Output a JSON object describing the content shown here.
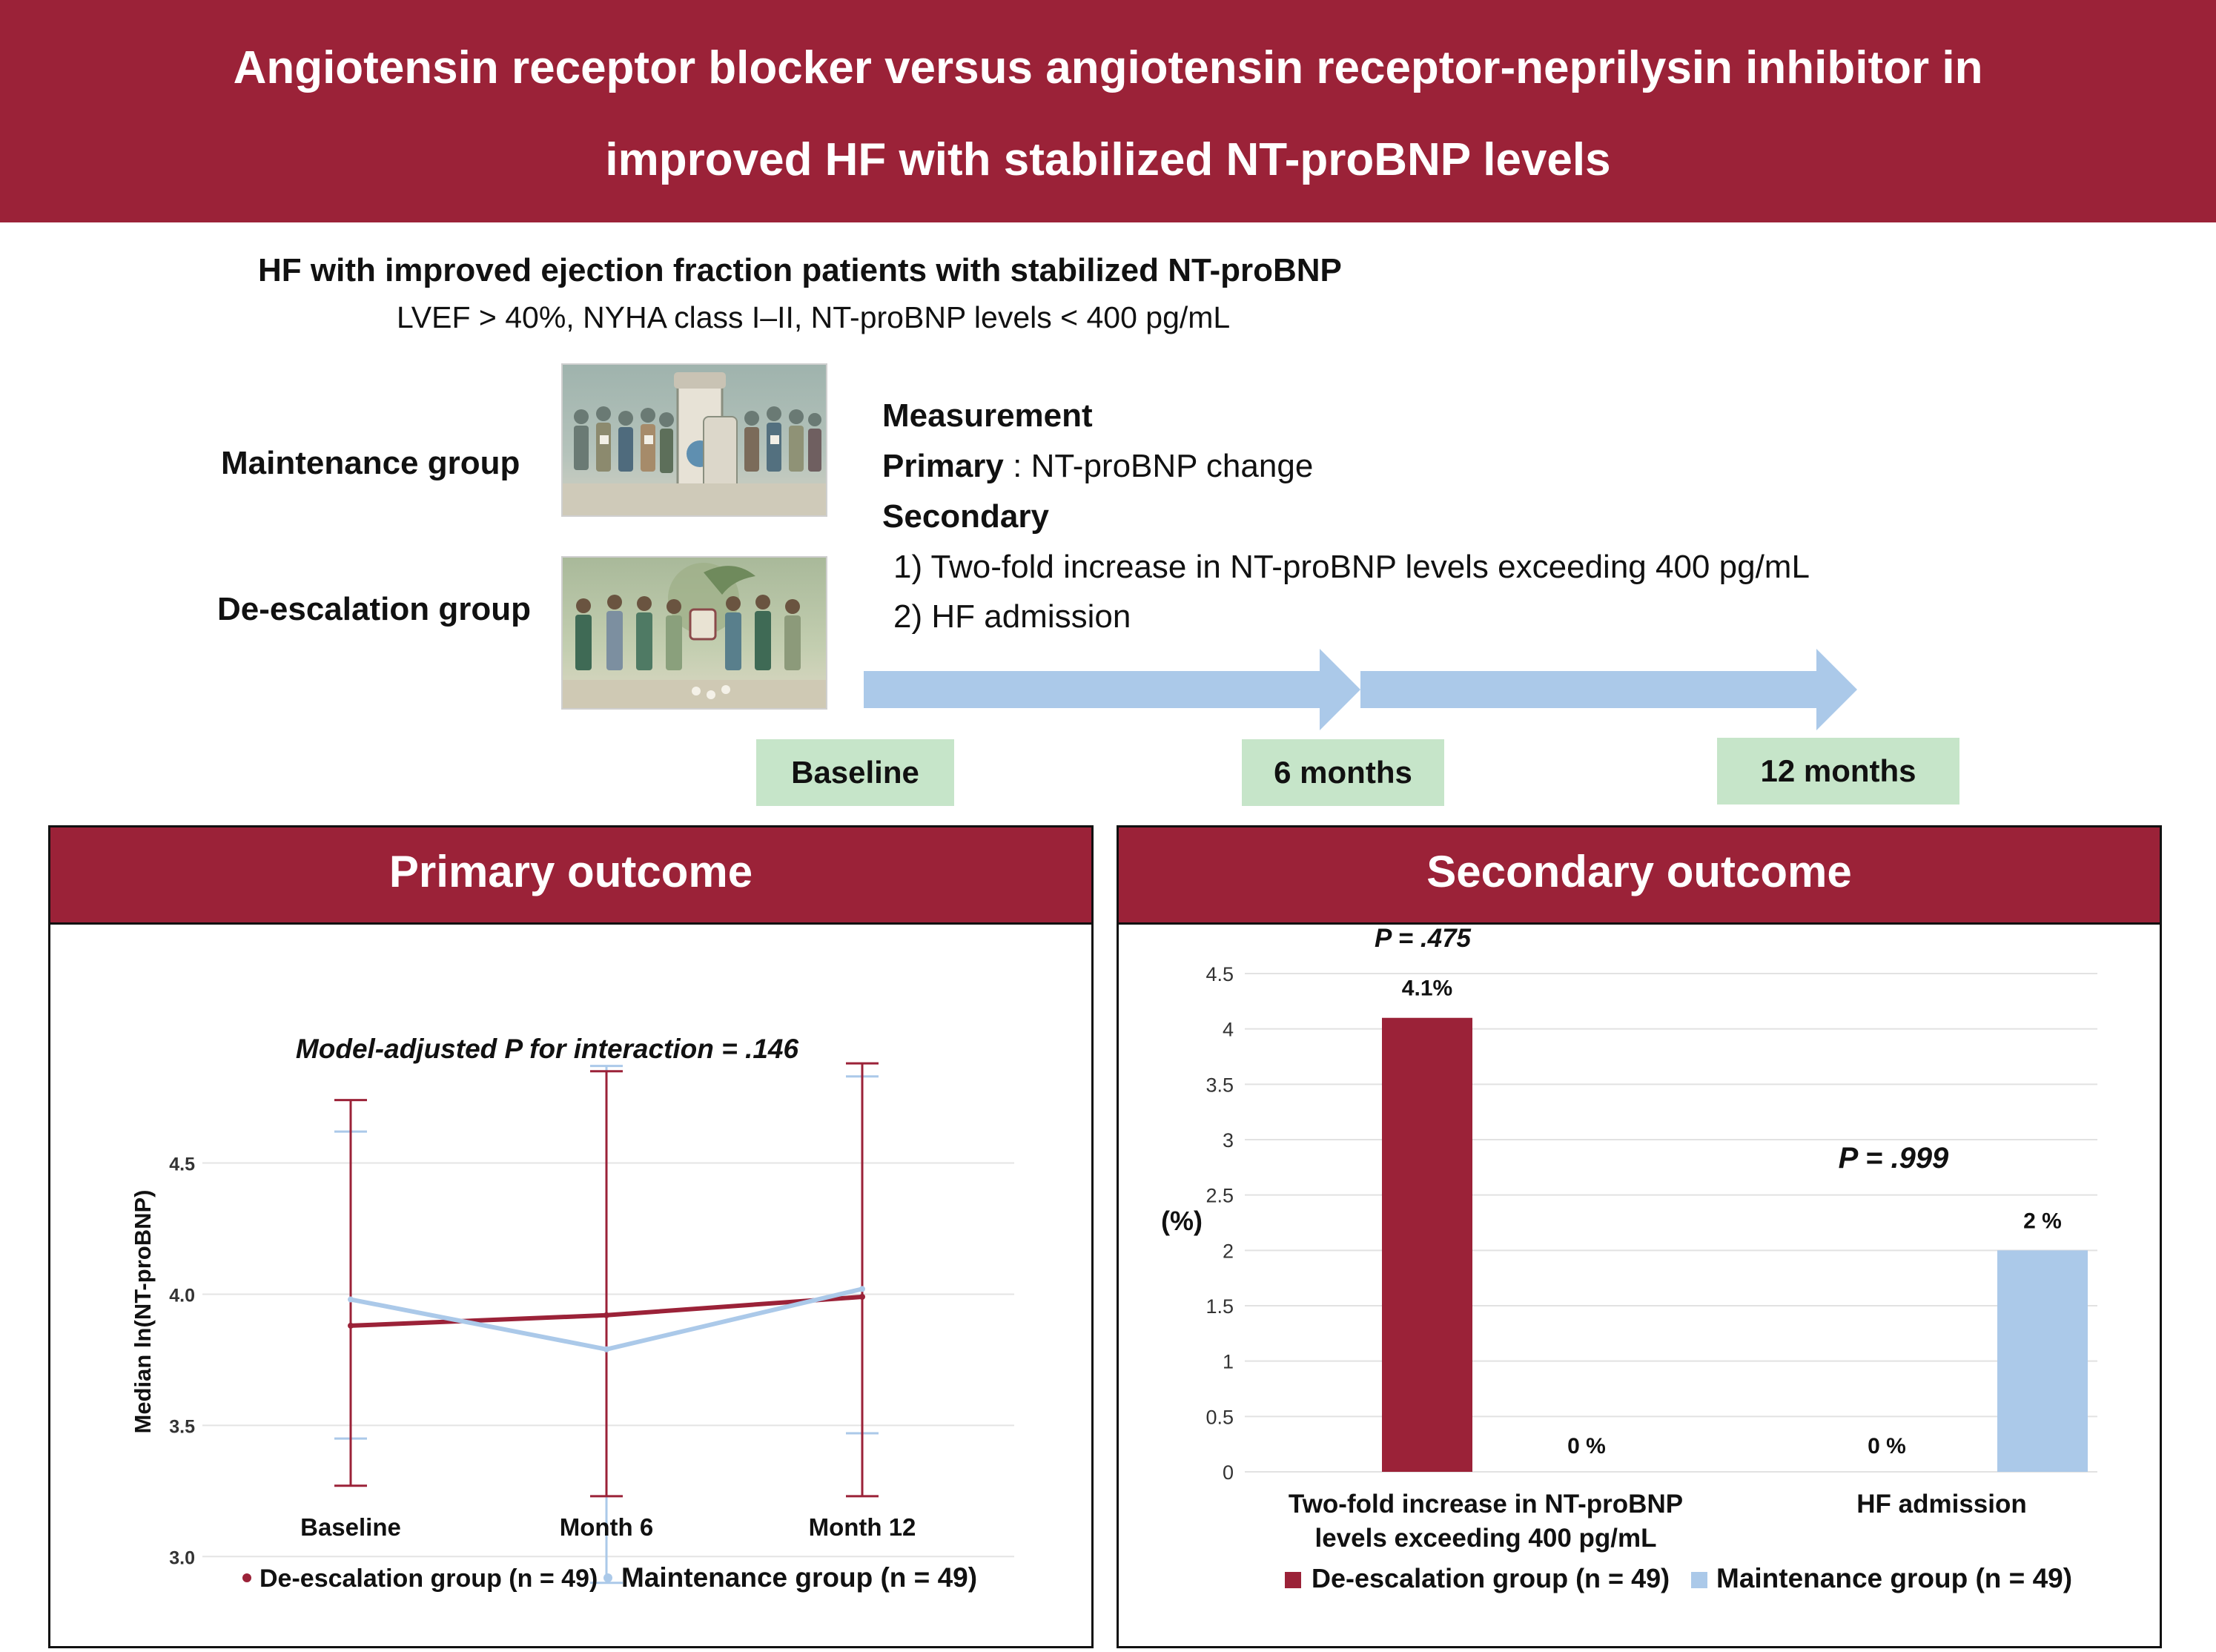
{
  "banner": {
    "line1": "Angiotensin receptor blocker versus angiotensin receptor-neprilysin inhibitor in",
    "line2": "improved HF with stabilized NT-proBNP levels"
  },
  "population": {
    "title": "HF with improved ejection fraction patients with stabilized NT-proBNP",
    "criteria": "LVEF > 40%, NYHA class I–II, NT-proBNP levels < 400 pg/mL"
  },
  "groups": {
    "maintenance": "Maintenance group",
    "deescalation": "De-escalation group"
  },
  "measurement": {
    "heading": "Measurement",
    "primary_label": "Primary",
    "primary_text": " : NT-proBNP  change",
    "secondary_label": "Secondary",
    "item1": "1) Two-fold increase in NT-proBNP  levels exceeding 400 pg/mL",
    "item2": "2) HF  admission"
  },
  "timeline": {
    "t0": "Baseline",
    "t1": "6 months",
    "t2": "12 months"
  },
  "colors": {
    "brand": "#9b2238",
    "deescalation": "#9b2238",
    "maintenance": "#abc9e9",
    "timeline_arrow": "#abc9e9",
    "timeline_box": "#c6e5c9"
  },
  "primary": {
    "header": "Primary outcome",
    "annotation_prefix": "Model-adjusted ",
    "annotation_p": "P",
    "annotation_suffix": " for interaction = .146",
    "legend_deesc": "De-escalation group (n = 49)",
    "legend_maint": "Maintenance group (n = 49)"
  },
  "secondary": {
    "header": "Secondary  outcome",
    "p1": "P  = .475",
    "p2": "P  =  .999",
    "label1": "4.1%",
    "label2": "0 %",
    "label3": "0 %",
    "label4": "2 %",
    "legend_deesc": "De-escalation group (n = 49)",
    "legend_maint": "Maintenance group (n = 49)"
  },
  "chart_data": [
    {
      "type": "line",
      "title": "",
      "xlabel": "",
      "ylabel": "Median ln(NT-proBNP)",
      "categories": [
        "Baseline",
        "Month 6",
        "Month 12"
      ],
      "ylim": [
        2.95,
        4.9
      ],
      "yticks": [
        "3.0",
        "3.5",
        "4.0",
        "4.5"
      ],
      "grid": true,
      "series": [
        {
          "name": "De-escalation group (n = 49)",
          "values": [
            3.88,
            3.92,
            3.99
          ],
          "err_low": [
            3.27,
            3.23,
            3.23
          ],
          "err_high": [
            4.74,
            4.85,
            4.88
          ]
        },
        {
          "name": "Maintenance group (n = 49)",
          "values": [
            3.98,
            3.79,
            4.02
          ],
          "err_low": [
            3.45,
            2.9,
            3.47
          ],
          "err_high": [
            4.62,
            4.87,
            4.83
          ]
        }
      ]
    },
    {
      "type": "bar",
      "title": "",
      "xlabel": "",
      "ylabel": "(%)",
      "categories": [
        "Two-fold increase in NT-proBNP levels exceeding 400 pg/mL",
        "HF admission"
      ],
      "category_lines": [
        [
          "Two-fold increase in NT-proBNP",
          "levels exceeding 400 pg/mL"
        ],
        [
          "HF admission"
        ]
      ],
      "ylim": [
        0,
        4.5
      ],
      "yticks": [
        "0",
        "0.5",
        "1",
        "1.5",
        "2",
        "2.5",
        "3",
        "3.5",
        "4",
        "4.5"
      ],
      "grid": true,
      "series": [
        {
          "name": "De-escalation group (n = 49)",
          "values": [
            4.1,
            0
          ]
        },
        {
          "name": "Maintenance group (n = 49)",
          "values": [
            0,
            2
          ]
        }
      ]
    }
  ]
}
